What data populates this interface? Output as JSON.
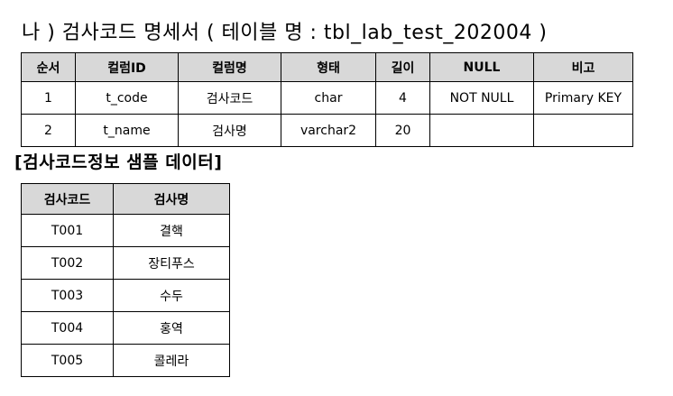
{
  "heading": "나 ) 검사코드 명세서 ( 테이블 명 : tbl_lab_test_202004 )",
  "spec_table": {
    "headers": [
      "순서",
      "컬럼ID",
      "컬럼명",
      "형태",
      "길이",
      "NULL",
      "비고"
    ],
    "rows": [
      [
        "1",
        "t_code",
        "검사코드",
        "char",
        "4",
        "NOT NULL",
        "Primary KEY"
      ],
      [
        "2",
        "t_name",
        "검사명",
        "varchar2",
        "20",
        "",
        ""
      ]
    ]
  },
  "sample_heading": "[검사코드정보 샘플 데이터]",
  "sample_table": {
    "headers": [
      "검사코드",
      "검사명"
    ],
    "rows": [
      [
        "T001",
        "결핵"
      ],
      [
        "T002",
        "장티푸스"
      ],
      [
        "T003",
        "수두"
      ],
      [
        "T004",
        "홍역"
      ],
      [
        "T005",
        "콜레라"
      ]
    ]
  }
}
